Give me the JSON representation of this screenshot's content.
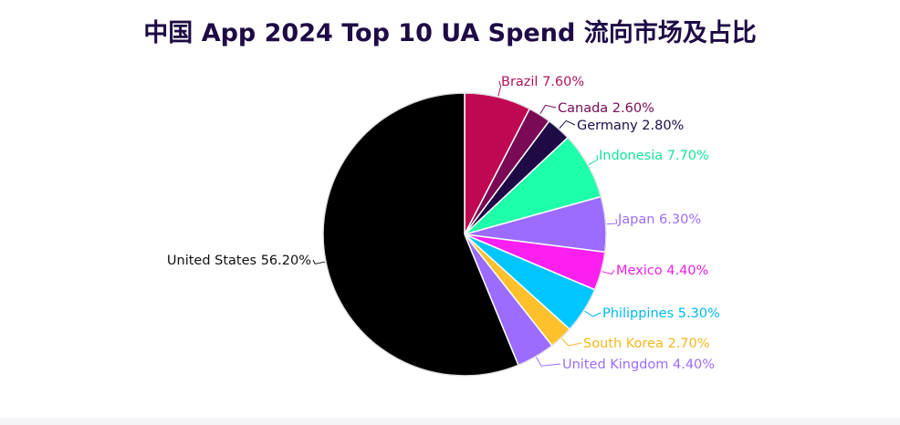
{
  "chart_data": {
    "type": "pie",
    "title": "中国 App 2024 Top 10 UA Spend 流向市场及占比",
    "slices": [
      {
        "label": "Brazil",
        "value": 7.6,
        "display": "Brazil 7.60%",
        "color": "#c00752",
        "label_color": "#b0145a"
      },
      {
        "label": "Canada",
        "value": 2.6,
        "display": "Canada 2.60%",
        "color": "#7a0a55",
        "label_color": "#7a0a55"
      },
      {
        "label": "Germany",
        "value": 2.8,
        "display": "Germany 2.80%",
        "color": "#1e0b46",
        "label_color": "#1e0b46"
      },
      {
        "label": "Indonesia",
        "value": 7.7,
        "display": "Indonesia 7.70%",
        "color": "#1effaa",
        "label_color": "#17e39a"
      },
      {
        "label": "Japan",
        "value": 6.3,
        "display": "Japan 6.30%",
        "color": "#9b6cff",
        "label_color": "#9b6cff"
      },
      {
        "label": "Mexico",
        "value": 4.4,
        "display": "Mexico 4.40%",
        "color": "#fb1ff0",
        "label_color": "#f01ee6"
      },
      {
        "label": "Philippines",
        "value": 5.3,
        "display": "Philippines 5.30%",
        "color": "#00c6ff",
        "label_color": "#00b8f0"
      },
      {
        "label": "South Korea",
        "value": 2.7,
        "display": "South Korea 2.70%",
        "color": "#fec02b",
        "label_color": "#f5b71e"
      },
      {
        "label": "United Kingdom",
        "value": 4.4,
        "display": "United Kingdom 4.40%",
        "color": "#9b6cff",
        "label_color": "#9b6cff"
      },
      {
        "label": "United States",
        "value": 56.2,
        "display": "United States 56.20%",
        "color": "#000000",
        "label_color": "#111111"
      }
    ],
    "start_direction": "top",
    "direction": "clockwise",
    "legend": "none"
  }
}
